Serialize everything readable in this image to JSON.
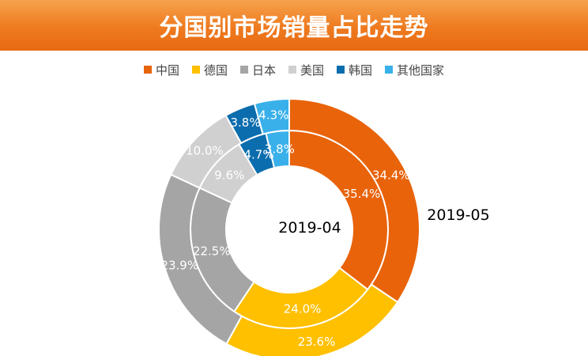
{
  "title": "分国别市场销量占比走势",
  "chart_data": {
    "type": "donut",
    "categories": [
      "中国",
      "德国",
      "日本",
      "美国",
      "韩国",
      "其他国家"
    ],
    "colors": [
      "#e8630a",
      "#ffc000",
      "#a5a5a5",
      "#d0d0d0",
      "#0b6dae",
      "#3ab0ea"
    ],
    "series": [
      {
        "name": "2019-04",
        "values": [
          35.4,
          24.0,
          22.5,
          9.6,
          4.7,
          3.8
        ],
        "labels": [
          "35.4%",
          "24.0%",
          "22.5%",
          "9.6%",
          "4.7%",
          "3.8%"
        ]
      },
      {
        "name": "2019-05",
        "values": [
          34.4,
          23.6,
          23.9,
          10.0,
          3.8,
          4.3
        ],
        "labels": [
          "34.4%",
          "23.6%",
          "23.9%",
          "10.0%",
          "3.8%",
          "4.3%"
        ]
      }
    ],
    "legend": "top",
    "start_angle": "12 o'clock",
    "direction": "clockwise"
  }
}
